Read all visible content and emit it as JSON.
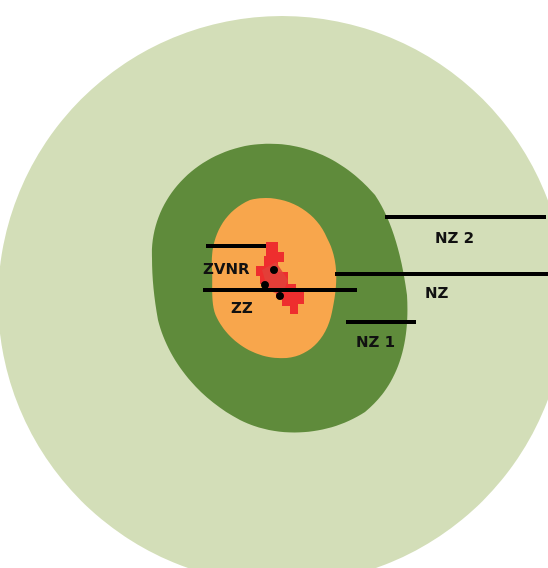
{
  "zones": {
    "nz2": {
      "label": "NZ 2",
      "color": "#d3deb8"
    },
    "nz": {
      "label": "NZ",
      "color": "#5f8b3b"
    },
    "nz1": {
      "label": "NZ 1"
    },
    "zz": {
      "label": "ZZ",
      "color": "#f8a64c"
    },
    "zvnr": {
      "label": "ZVNR",
      "color": "#ee2e2e"
    }
  },
  "leader_color": "#000000",
  "point_color": "#000000"
}
